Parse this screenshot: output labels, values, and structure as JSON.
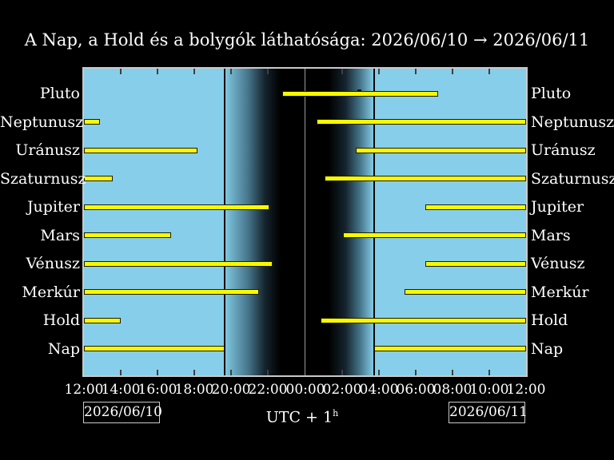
{
  "title": "A Nap, a Hold és a bolygók láthatósága: 2026/06/10 → 2026/06/11",
  "footer": {
    "left_date": "2026/06/10",
    "right_date": "2026/06/11",
    "timezone_label": "UTC + 1",
    "timezone_superscript": "h"
  },
  "colors": {
    "background": "#000000",
    "day_sky": "#87ceeb",
    "night_sky": "#000000",
    "bar_fill": "#f8f800",
    "bar_border": "#1e1e00",
    "frame": "#c9c9c9",
    "midnight_line": "#9a9a9a",
    "sun_boundary_line": "#0a0a0a",
    "text": "#ffffff"
  },
  "chart_data": {
    "type": "interval-gantt",
    "title": "A Nap, a Hold és a bolygók láthatósága: 2026/06/10 → 2026/06/11",
    "x_axis": {
      "tick_labels": [
        "12:00",
        "14:00",
        "16:00",
        "18:00",
        "20:00",
        "22:00",
        "00:00",
        "02:00",
        "04:00",
        "06:00",
        "08:00",
        "10:00",
        "12:00"
      ],
      "tick_interval_hours": 2,
      "span_hours": 24,
      "start_label": "12:00",
      "timezone": "UTC + 1h"
    },
    "rows": [
      {
        "label": "Pluto",
        "intervals": [
          [
            10.76,
            19.22
          ]
        ],
        "culmination": 14.92
      },
      {
        "label": "Neptunusz",
        "intervals": [
          [
            0,
            0.87
          ],
          [
            12.62,
            24
          ]
        ]
      },
      {
        "label": "Uránusz",
        "intervals": [
          [
            0,
            6.16
          ],
          [
            14.75,
            24
          ]
        ]
      },
      {
        "label": "Szaturnusz",
        "intervals": [
          [
            0,
            1.56
          ],
          [
            13.06,
            24
          ]
        ]
      },
      {
        "label": "Jupiter",
        "intervals": [
          [
            0,
            10.07
          ],
          [
            18.52,
            24
          ]
        ]
      },
      {
        "label": "Mars",
        "intervals": [
          [
            0,
            4.73
          ],
          [
            14.06,
            24
          ]
        ]
      },
      {
        "label": "Vénusz",
        "intervals": [
          [
            0,
            10.24
          ],
          [
            18.52,
            24
          ]
        ]
      },
      {
        "label": "Merkúr",
        "intervals": [
          [
            0,
            9.5
          ],
          [
            17.4,
            24
          ]
        ]
      },
      {
        "label": "Hold",
        "intervals": [
          [
            0,
            2.0
          ],
          [
            12.84,
            24
          ]
        ]
      },
      {
        "label": "Nap",
        "intervals": [
          [
            0,
            7.64
          ],
          [
            15.75,
            24
          ]
        ]
      }
    ],
    "sun_events": {
      "sunset_hour_offset": 7.64,
      "midnight_hour_offset": 12.0,
      "sunrise_hour_offset": 15.75
    },
    "twilight": {
      "dusk_end_hour_offset": 10.63,
      "dawn_start_hour_offset": 13.32
    },
    "legend_position": "none",
    "grid": false
  }
}
